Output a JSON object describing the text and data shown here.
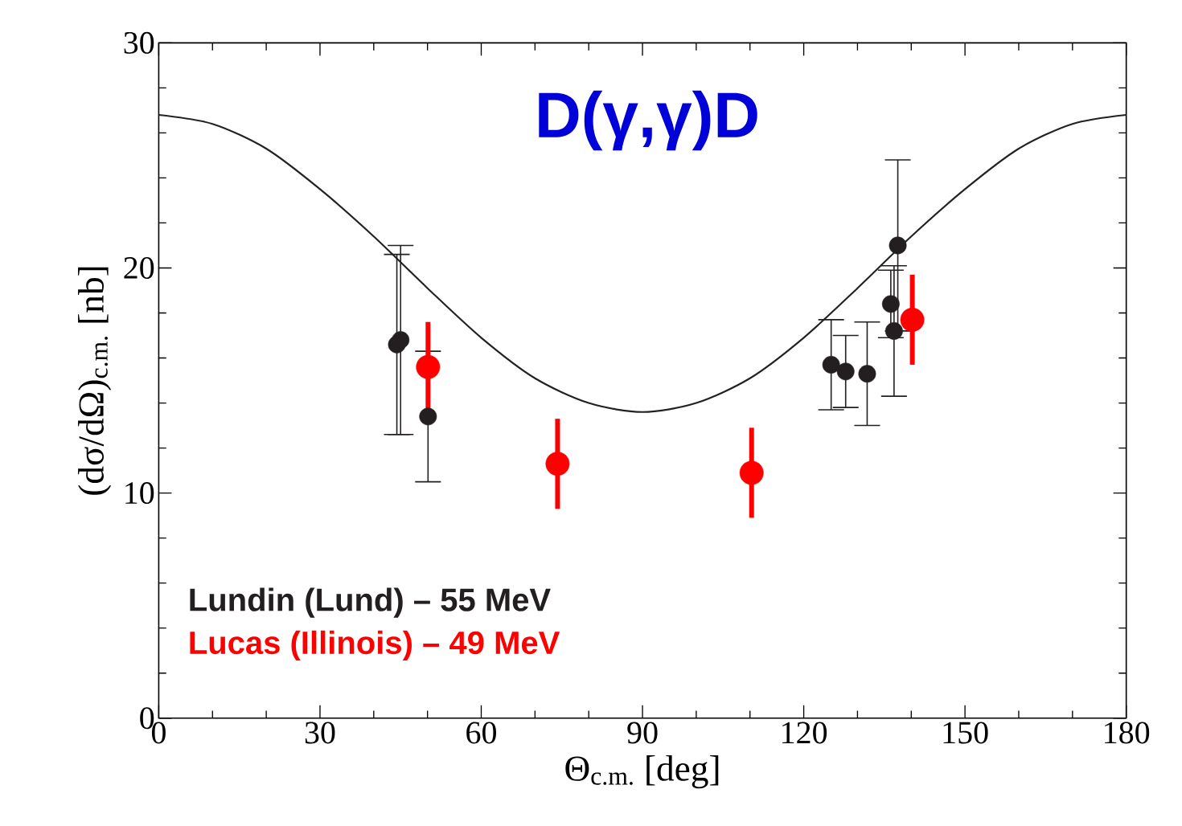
{
  "chart_data": {
    "type": "scatter",
    "title": "D(γ,γ)D",
    "xlabel": "Θ$_{c.m.}$ [deg]",
    "ylabel": "(dσ/dΩ)$_{c.m.}$ [nb]",
    "xlim": [
      0,
      180
    ],
    "ylim": [
      0,
      30
    ],
    "xticks": [
      0,
      {
        "value": 10,
        "label": null
      },
      {
        "value": 20,
        "label": null
      },
      30,
      {
        "value": 40,
        "label": null
      },
      {
        "value": 50,
        "label": null
      },
      60,
      {
        "value": 70,
        "label": null
      },
      {
        "value": 80,
        "label": null
      },
      90,
      {
        "value": 100,
        "label": null
      },
      {
        "value": 110,
        "label": null
      },
      120,
      {
        "value": 130,
        "label": null
      },
      {
        "value": 140,
        "label": null
      },
      150,
      {
        "value": 160,
        "label": null
      },
      {
        "value": 170,
        "label": null
      },
      180
    ],
    "yticks": [
      0,
      {
        "value": 2,
        "label": null
      },
      {
        "value": 4,
        "label": null
      },
      {
        "value": 6,
        "label": null
      },
      {
        "value": 8,
        "label": null
      },
      10,
      {
        "value": 12,
        "label": null
      },
      {
        "value": 14,
        "label": null
      },
      {
        "value": 16,
        "label": null
      },
      {
        "value": 18,
        "label": null
      },
      20,
      {
        "value": 22,
        "label": null
      },
      {
        "value": 24,
        "label": null
      },
      {
        "value": 26,
        "label": null
      },
      {
        "value": 28,
        "label": null
      },
      30
    ],
    "legend": "bottom left",
    "grid": false,
    "series": [
      {
        "type": "line",
        "color": "#222222",
        "marker": "none",
        "x": [
          0,
          10,
          20,
          30,
          40,
          50,
          60,
          70,
          80,
          90,
          100,
          110,
          120,
          130,
          140,
          150,
          160,
          170,
          180
        ],
        "values": [
          26.8,
          26.4,
          25.3,
          23.5,
          21.4,
          19.1,
          16.9,
          15.1,
          14.0,
          13.6,
          14.0,
          15.1,
          16.9,
          19.1,
          21.4,
          23.5,
          25.3,
          26.4,
          26.8
        ]
      },
      {
        "name": "Lundin (Lund) – 55 MeV",
        "color": "#231f20",
        "marker": "circle",
        "x": [
          44.3,
          45.0,
          50.1,
          125.1,
          127.8,
          131.8,
          136.2,
          136.8,
          137.5
        ],
        "values": [
          16.6,
          16.8,
          13.4,
          15.7,
          15.4,
          15.3,
          18.4,
          17.2,
          21.0
        ],
        "errors": [
          4.0,
          4.2,
          2.9,
          2.0,
          1.6,
          2.3,
          1.5,
          2.9,
          3.8
        ]
      },
      {
        "name": "Lucas (Illinois) – 49 MeV",
        "color": "#ff0000",
        "marker": "circle",
        "x": [
          50.1,
          74.2,
          110.3,
          140.2
        ],
        "values": [
          15.6,
          11.3,
          10.9,
          17.7
        ],
        "errors": [
          2.0,
          2.0,
          2.0,
          2.0
        ]
      }
    ]
  }
}
